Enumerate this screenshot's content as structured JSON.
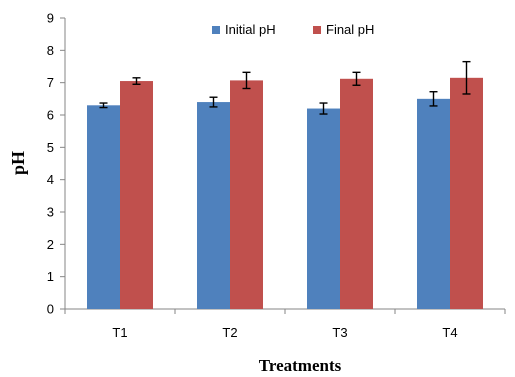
{
  "chart_data": {
    "type": "bar",
    "title": "",
    "xlabel": "Treatments",
    "ylabel": "pH",
    "ylim": [
      0,
      9
    ],
    "y_ticks": [
      0,
      1,
      2,
      3,
      4,
      5,
      6,
      7,
      8,
      9
    ],
    "grid": false,
    "legend_position": "top",
    "categories": [
      "T1",
      "T2",
      "T3",
      "T4"
    ],
    "series": [
      {
        "name": "Initial pH",
        "color": "#4f81bd",
        "values": [
          6.3,
          6.4,
          6.2,
          6.5
        ],
        "errors": [
          0.07,
          0.15,
          0.17,
          0.22
        ]
      },
      {
        "name": "Final pH",
        "color": "#c0504d",
        "values": [
          7.05,
          7.07,
          7.12,
          7.15
        ],
        "errors": [
          0.1,
          0.25,
          0.2,
          0.5
        ]
      }
    ]
  }
}
